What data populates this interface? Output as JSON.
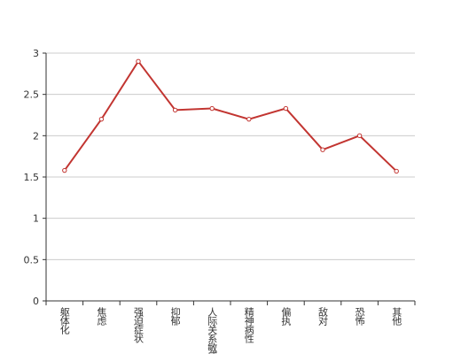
{
  "chart_data": {
    "type": "line",
    "categories": [
      "躯体化",
      "焦虑",
      "强迫症状",
      "抑郁",
      "人际关系敏感",
      "精神病性",
      "偏执",
      "敌对",
      "恐怖",
      "其他"
    ],
    "series": [
      {
        "color": "#c23531",
        "values": [
          1.58,
          2.2,
          2.9,
          2.31,
          2.33,
          2.2,
          2.33,
          1.83,
          2.0,
          1.57
        ]
      }
    ],
    "ylim": [
      0,
      3
    ],
    "yticks": [
      0,
      0.5,
      1,
      1.5,
      2,
      2.5,
      3
    ],
    "grid": true
  }
}
